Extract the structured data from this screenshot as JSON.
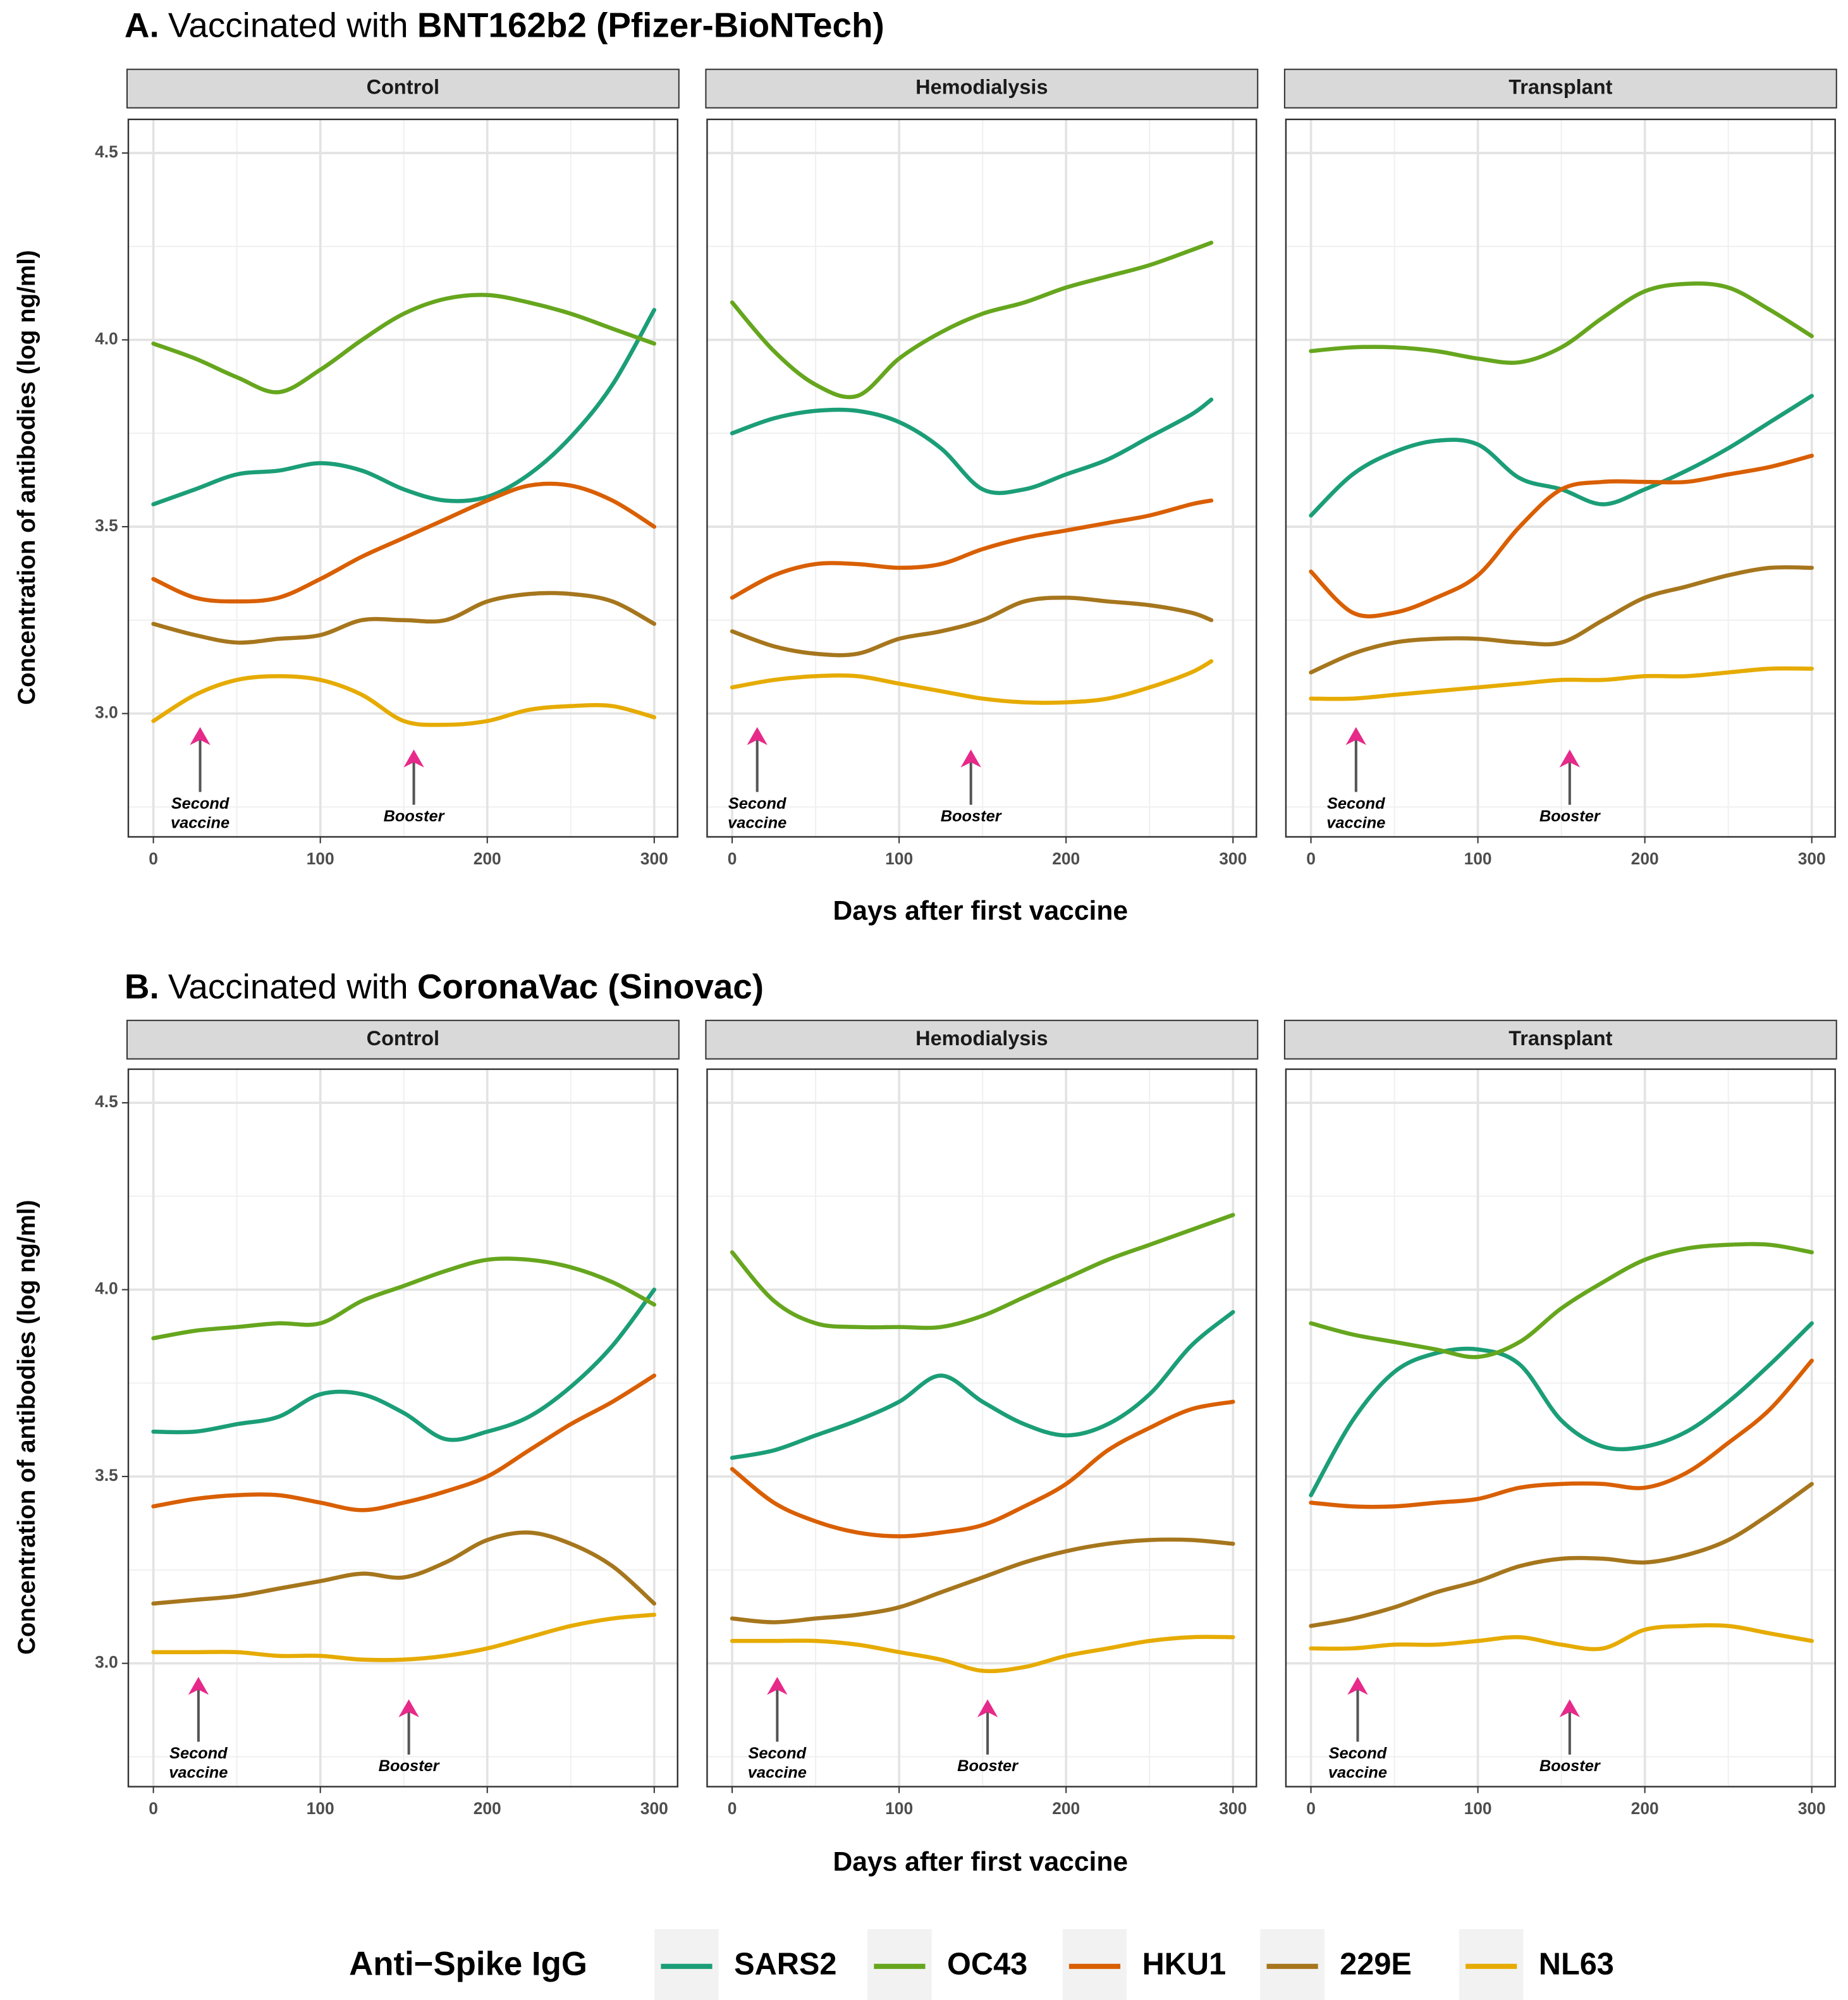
{
  "sections": [
    {
      "label": "A.",
      "title": "Vaccinated with",
      "vaccine": "BNT162b2 (Pfizer-BioNTech)",
      "xlabel": "Days after first vaccine",
      "ylabel": "Concentration of antibodies (log ng/ml)"
    },
    {
      "label": "B.",
      "title": "Vaccinated with",
      "vaccine": "CoronaVac (Sinovac)",
      "xlabel": "Days after first vaccine",
      "ylabel": "Concentration of antibodies (log ng/ml)"
    }
  ],
  "legend": {
    "title": "Anti−Spike IgG",
    "position": "bottom"
  },
  "chart_data": [
    {
      "type": "line",
      "title": "Control",
      "x": [
        0,
        25,
        50,
        75,
        100,
        125,
        150,
        175,
        200,
        225,
        250,
        275,
        300
      ],
      "xlim": [
        -15,
        314
      ],
      "xticks": [
        0,
        100,
        200,
        300
      ],
      "ylim": [
        2.67,
        4.59
      ],
      "yticks": [
        {
          "value": 3,
          "label": "3.0"
        },
        {
          "value": 3.5,
          "label": "3.5"
        },
        {
          "value": 4,
          "label": "4.0"
        },
        {
          "value": 4.5,
          "label": "4.5"
        }
      ],
      "grid": true,
      "annotations": [
        {
          "text": "Second vaccine",
          "x": 28
        },
        {
          "text": "Booster",
          "x": 156
        }
      ],
      "series": [
        {
          "name": "SARS2",
          "color": "#1b9e77",
          "values": [
            3.56,
            3.6,
            3.64,
            3.65,
            3.67,
            3.65,
            3.6,
            3.57,
            3.58,
            3.64,
            3.74,
            3.88,
            4.08
          ]
        },
        {
          "name": "OC43",
          "color": "#66a61e",
          "values": [
            3.99,
            3.95,
            3.9,
            3.86,
            3.92,
            4.0,
            4.07,
            4.11,
            4.12,
            4.1,
            4.07,
            4.03,
            3.99
          ]
        },
        {
          "name": "HKU1",
          "color": "#d95f02",
          "values": [
            3.36,
            3.31,
            3.3,
            3.31,
            3.36,
            3.42,
            3.47,
            3.52,
            3.57,
            3.61,
            3.61,
            3.57,
            3.5
          ]
        },
        {
          "name": "229E",
          "color": "#a6761d",
          "values": [
            3.24,
            3.21,
            3.19,
            3.2,
            3.21,
            3.25,
            3.25,
            3.25,
            3.3,
            3.32,
            3.32,
            3.3,
            3.24
          ]
        },
        {
          "name": "NL63",
          "color": "#e6ab02",
          "values": [
            2.98,
            3.05,
            3.09,
            3.1,
            3.09,
            3.05,
            2.98,
            2.97,
            2.98,
            3.01,
            3.02,
            3.02,
            2.99
          ]
        }
      ]
    },
    {
      "type": "line",
      "title": "Hemodialysis",
      "x": [
        0,
        25,
        50,
        75,
        100,
        125,
        150,
        175,
        200,
        225,
        250,
        275,
        287
      ],
      "xlim": [
        -15,
        314
      ],
      "xticks": [
        0,
        100,
        200,
        300
      ],
      "ylim": [
        2.67,
        4.59
      ],
      "yticks": [
        {
          "value": 3,
          "label": "3.0"
        },
        {
          "value": 3.5,
          "label": "3.5"
        },
        {
          "value": 4,
          "label": "4.0"
        },
        {
          "value": 4.5,
          "label": "4.5"
        }
      ],
      "grid": true,
      "annotations": [
        {
          "text": "Second vaccine",
          "x": 15
        },
        {
          "text": "Booster",
          "x": 143
        }
      ],
      "series": [
        {
          "name": "SARS2",
          "color": "#1b9e77",
          "values": [
            3.75,
            3.79,
            3.81,
            3.81,
            3.78,
            3.71,
            3.6,
            3.6,
            3.64,
            3.68,
            3.74,
            3.8,
            3.84
          ]
        },
        {
          "name": "OC43",
          "color": "#66a61e",
          "values": [
            4.1,
            3.97,
            3.88,
            3.85,
            3.95,
            4.02,
            4.07,
            4.1,
            4.14,
            4.17,
            4.2,
            4.24,
            4.26
          ]
        },
        {
          "name": "HKU1",
          "color": "#d95f02",
          "values": [
            3.31,
            3.37,
            3.4,
            3.4,
            3.39,
            3.4,
            3.44,
            3.47,
            3.49,
            3.51,
            3.53,
            3.56,
            3.57
          ]
        },
        {
          "name": "229E",
          "color": "#a6761d",
          "values": [
            3.22,
            3.18,
            3.16,
            3.16,
            3.2,
            3.22,
            3.25,
            3.3,
            3.31,
            3.3,
            3.29,
            3.27,
            3.25
          ]
        },
        {
          "name": "NL63",
          "color": "#e6ab02",
          "values": [
            3.07,
            3.09,
            3.1,
            3.1,
            3.08,
            3.06,
            3.04,
            3.03,
            3.03,
            3.04,
            3.07,
            3.11,
            3.14
          ]
        }
      ]
    },
    {
      "type": "line",
      "title": "Transplant",
      "x": [
        0,
        25,
        50,
        75,
        100,
        125,
        150,
        175,
        200,
        225,
        250,
        275,
        300
      ],
      "xlim": [
        -15,
        314
      ],
      "xticks": [
        0,
        100,
        200,
        300
      ],
      "ylim": [
        2.67,
        4.59
      ],
      "yticks": [
        {
          "value": 3,
          "label": "3.0"
        },
        {
          "value": 3.5,
          "label": "3.5"
        },
        {
          "value": 4,
          "label": "4.0"
        },
        {
          "value": 4.5,
          "label": "4.5"
        }
      ],
      "grid": true,
      "annotations": [
        {
          "text": "Second vaccine",
          "x": 27
        },
        {
          "text": "Booster",
          "x": 155
        }
      ],
      "series": [
        {
          "name": "SARS2",
          "color": "#1b9e77",
          "values": [
            3.53,
            3.64,
            3.7,
            3.73,
            3.72,
            3.63,
            3.6,
            3.56,
            3.6,
            3.65,
            3.71,
            3.78,
            3.85
          ]
        },
        {
          "name": "OC43",
          "color": "#66a61e",
          "values": [
            3.97,
            3.98,
            3.98,
            3.97,
            3.95,
            3.94,
            3.98,
            4.06,
            4.13,
            4.15,
            4.14,
            4.08,
            4.01
          ]
        },
        {
          "name": "HKU1",
          "color": "#d95f02",
          "values": [
            3.38,
            3.27,
            3.27,
            3.31,
            3.37,
            3.5,
            3.6,
            3.62,
            3.62,
            3.62,
            3.64,
            3.66,
            3.69
          ]
        },
        {
          "name": "229E",
          "color": "#a6761d",
          "values": [
            3.11,
            3.16,
            3.19,
            3.2,
            3.2,
            3.19,
            3.19,
            3.25,
            3.31,
            3.34,
            3.37,
            3.39,
            3.39
          ]
        },
        {
          "name": "NL63",
          "color": "#e6ab02",
          "values": [
            3.04,
            3.04,
            3.05,
            3.06,
            3.07,
            3.08,
            3.09,
            3.09,
            3.1,
            3.1,
            3.11,
            3.12,
            3.12
          ]
        }
      ]
    },
    {
      "type": "line",
      "title": "Control",
      "x": [
        0,
        25,
        50,
        75,
        100,
        125,
        150,
        175,
        200,
        225,
        250,
        275,
        300
      ],
      "xlim": [
        -15,
        314
      ],
      "xticks": [
        0,
        100,
        200,
        300
      ],
      "ylim": [
        2.67,
        4.59
      ],
      "yticks": [
        {
          "value": 3,
          "label": "3.0"
        },
        {
          "value": 3.5,
          "label": "3.5"
        },
        {
          "value": 4,
          "label": "4.0"
        },
        {
          "value": 4.5,
          "label": "4.5"
        }
      ],
      "grid": true,
      "annotations": [
        {
          "text": "Second vaccine",
          "x": 27
        },
        {
          "text": "Booster",
          "x": 153
        }
      ],
      "series": [
        {
          "name": "SARS2",
          "color": "#1b9e77",
          "values": [
            3.62,
            3.62,
            3.64,
            3.66,
            3.72,
            3.72,
            3.67,
            3.6,
            3.62,
            3.66,
            3.74,
            3.85,
            4.0
          ]
        },
        {
          "name": "OC43",
          "color": "#66a61e",
          "values": [
            3.87,
            3.89,
            3.9,
            3.91,
            3.91,
            3.97,
            4.01,
            4.05,
            4.08,
            4.08,
            4.06,
            4.02,
            3.96
          ]
        },
        {
          "name": "HKU1",
          "color": "#d95f02",
          "values": [
            3.42,
            3.44,
            3.45,
            3.45,
            3.43,
            3.41,
            3.43,
            3.46,
            3.5,
            3.57,
            3.64,
            3.7,
            3.77
          ]
        },
        {
          "name": "229E",
          "color": "#a6761d",
          "values": [
            3.16,
            3.17,
            3.18,
            3.2,
            3.22,
            3.24,
            3.23,
            3.27,
            3.33,
            3.35,
            3.32,
            3.26,
            3.16
          ]
        },
        {
          "name": "NL63",
          "color": "#e6ab02",
          "values": [
            3.03,
            3.03,
            3.03,
            3.02,
            3.02,
            3.01,
            3.01,
            3.02,
            3.04,
            3.07,
            3.1,
            3.12,
            3.13
          ]
        }
      ]
    },
    {
      "type": "line",
      "title": "Hemodialysis",
      "x": [
        0,
        25,
        50,
        75,
        100,
        125,
        150,
        175,
        200,
        225,
        250,
        275,
        300
      ],
      "xlim": [
        -15,
        314
      ],
      "xticks": [
        0,
        100,
        200,
        300
      ],
      "ylim": [
        2.67,
        4.59
      ],
      "yticks": [
        {
          "value": 3,
          "label": "3.0"
        },
        {
          "value": 3.5,
          "label": "3.5"
        },
        {
          "value": 4,
          "label": "4.0"
        },
        {
          "value": 4.5,
          "label": "4.5"
        }
      ],
      "grid": true,
      "annotations": [
        {
          "text": "Second vaccine",
          "x": 27
        },
        {
          "text": "Booster",
          "x": 153
        }
      ],
      "series": [
        {
          "name": "SARS2",
          "color": "#1b9e77",
          "values": [
            3.55,
            3.57,
            3.61,
            3.65,
            3.7,
            3.77,
            3.7,
            3.64,
            3.61,
            3.64,
            3.72,
            3.85,
            3.94
          ]
        },
        {
          "name": "OC43",
          "color": "#66a61e",
          "values": [
            4.1,
            3.97,
            3.91,
            3.9,
            3.9,
            3.9,
            3.93,
            3.98,
            4.03,
            4.08,
            4.12,
            4.16,
            4.2
          ]
        },
        {
          "name": "HKU1",
          "color": "#d95f02",
          "values": [
            3.52,
            3.43,
            3.38,
            3.35,
            3.34,
            3.35,
            3.37,
            3.42,
            3.48,
            3.57,
            3.63,
            3.68,
            3.7
          ]
        },
        {
          "name": "229E",
          "color": "#a6761d",
          "values": [
            3.12,
            3.11,
            3.12,
            3.13,
            3.15,
            3.19,
            3.23,
            3.27,
            3.3,
            3.32,
            3.33,
            3.33,
            3.32
          ]
        },
        {
          "name": "NL63",
          "color": "#e6ab02",
          "values": [
            3.06,
            3.06,
            3.06,
            3.05,
            3.03,
            3.01,
            2.98,
            2.99,
            3.02,
            3.04,
            3.06,
            3.07,
            3.07
          ]
        }
      ]
    },
    {
      "type": "line",
      "title": "Transplant",
      "x": [
        0,
        25,
        50,
        75,
        100,
        125,
        150,
        175,
        200,
        225,
        250,
        275,
        300
      ],
      "xlim": [
        -15,
        314
      ],
      "xticks": [
        0,
        100,
        200,
        300
      ],
      "ylim": [
        2.67,
        4.59
      ],
      "yticks": [
        {
          "value": 3,
          "label": "3.0"
        },
        {
          "value": 3.5,
          "label": "3.5"
        },
        {
          "value": 4,
          "label": "4.0"
        },
        {
          "value": 4.5,
          "label": "4.5"
        }
      ],
      "grid": true,
      "annotations": [
        {
          "text": "Second vaccine",
          "x": 28
        },
        {
          "text": "Booster",
          "x": 155
        }
      ],
      "series": [
        {
          "name": "SARS2",
          "color": "#1b9e77",
          "values": [
            3.45,
            3.65,
            3.78,
            3.83,
            3.84,
            3.8,
            3.65,
            3.58,
            3.58,
            3.62,
            3.7,
            3.8,
            3.91
          ]
        },
        {
          "name": "OC43",
          "color": "#66a61e",
          "values": [
            3.91,
            3.88,
            3.86,
            3.84,
            3.82,
            3.86,
            3.95,
            4.02,
            4.08,
            4.11,
            4.12,
            4.12,
            4.1
          ]
        },
        {
          "name": "HKU1",
          "color": "#d95f02",
          "values": [
            3.43,
            3.42,
            3.42,
            3.43,
            3.44,
            3.47,
            3.48,
            3.48,
            3.47,
            3.51,
            3.59,
            3.68,
            3.81
          ]
        },
        {
          "name": "229E",
          "color": "#a6761d",
          "values": [
            3.1,
            3.12,
            3.15,
            3.19,
            3.22,
            3.26,
            3.28,
            3.28,
            3.27,
            3.29,
            3.33,
            3.4,
            3.48
          ]
        },
        {
          "name": "NL63",
          "color": "#e6ab02",
          "values": [
            3.04,
            3.04,
            3.05,
            3.05,
            3.06,
            3.07,
            3.05,
            3.04,
            3.09,
            3.1,
            3.1,
            3.08,
            3.06
          ]
        }
      ]
    }
  ]
}
